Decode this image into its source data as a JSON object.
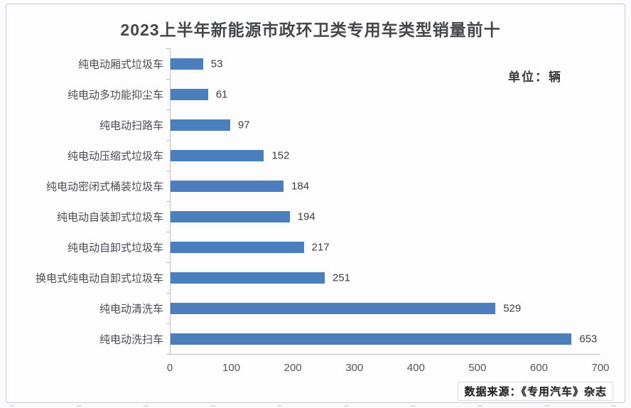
{
  "labels": {
    "unit": "单位：辆",
    "source": "数据来源：《专用汽车》杂志"
  },
  "chart_data": {
    "type": "bar",
    "orientation": "horizontal",
    "title": "2023上半年新能源市政环卫类专用车类型销量前十",
    "unit": "辆",
    "categories": [
      "纯电动厢式垃圾车",
      "纯电动多功能抑尘车",
      "纯电动扫路车",
      "纯电动压缩式垃圾车",
      "纯电动密闭式桶装垃圾车",
      "纯电动自装卸式垃圾车",
      "纯电动自卸式垃圾车",
      "换电式纯电动自卸式垃圾车",
      "纯电动清洗车",
      "纯电动洗扫车"
    ],
    "values": [
      53,
      61,
      97,
      152,
      184,
      194,
      217,
      251,
      529,
      653
    ],
    "x_ticks": [
      0,
      100,
      200,
      300,
      400,
      500,
      600,
      700
    ],
    "xlim": [
      0,
      700
    ],
    "value_labels": true,
    "grid": false,
    "legend": false,
    "bar_color": "#4a7ebd"
  },
  "colors": {
    "bar": "#4a7ebd",
    "axis_line": "#b9bdc9",
    "title_text": "#45474a",
    "category_text": "#4f4b55",
    "tick_text": "#55555c",
    "frame_border": "#c9cad6",
    "background": "#fdfdfe"
  }
}
